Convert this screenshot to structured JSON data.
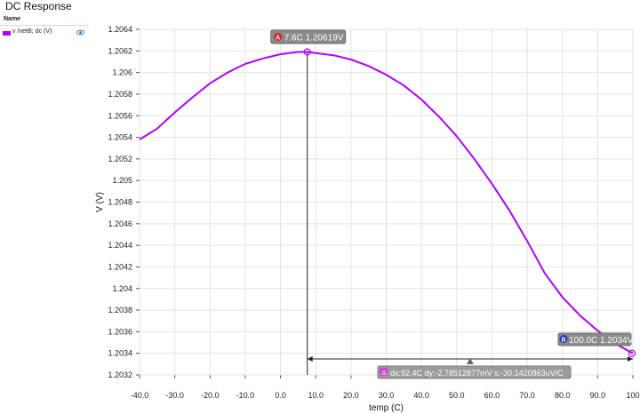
{
  "window": {
    "title": "DC Response"
  },
  "legend": {
    "header": "Name",
    "items": [
      {
        "label": "v /netB; dc (V)",
        "color": "#b200ff",
        "icon": "eye-icon"
      }
    ]
  },
  "chart_data": {
    "type": "line",
    "xlabel": "temp (C)",
    "ylabel": "V (V)",
    "xlim": [
      -40,
      100
    ],
    "ylim": [
      1.2032,
      1.2064
    ],
    "x_ticks": [
      -40,
      -30,
      -20,
      -10,
      0,
      10,
      20,
      30,
      40,
      50,
      60,
      70,
      80,
      90,
      100
    ],
    "x_tick_labels": [
      "-40.0",
      "-30.0",
      "-20.0",
      "-10.0",
      "0.0",
      "10.0",
      "20.0",
      "30.0",
      "40.0",
      "50.0",
      "60.0",
      "70.0",
      "80.0",
      "90.0",
      "100"
    ],
    "y_ticks": [
      1.2032,
      1.2034,
      1.2036,
      1.2038,
      1.204,
      1.2042,
      1.2044,
      1.2046,
      1.2048,
      1.205,
      1.2052,
      1.2054,
      1.2056,
      1.2058,
      1.206,
      1.2062,
      1.2064
    ],
    "y_tick_labels": [
      "1.2032",
      "1.2034",
      "1.2036",
      "1.2038",
      "1.204",
      "1.2042",
      "1.2044",
      "1.2046",
      "1.2048",
      "1.205",
      "1.2052",
      "1.2054",
      "1.2056",
      "1.2058",
      "1.206",
      "1.2062",
      "1.2064"
    ],
    "grid": true,
    "series": [
      {
        "name": "v /netB; dc (V)",
        "color": "#b200ff",
        "x": [
          -40,
          -35,
          -30,
          -25,
          -20,
          -15,
          -10,
          -5,
          0,
          5,
          7.6,
          10,
          15,
          20,
          25,
          30,
          35,
          40,
          45,
          50,
          55,
          60,
          65,
          70,
          75,
          80,
          85,
          90,
          95,
          100
        ],
        "y": [
          1.20538,
          1.20548,
          1.20563,
          1.20577,
          1.2059,
          1.206,
          1.20608,
          1.20613,
          1.20617,
          1.20619,
          1.20619,
          1.20618,
          1.20616,
          1.20612,
          1.20606,
          1.20598,
          1.20588,
          1.20575,
          1.20559,
          1.20541,
          1.2052,
          1.20497,
          1.20472,
          1.20444,
          1.20414,
          1.20392,
          1.20375,
          1.20361,
          1.20349,
          1.2034
        ]
      }
    ],
    "markers": [
      {
        "id": "A",
        "label": "7.6C  1.20619V",
        "x": 7.6,
        "y": 1.20619,
        "badge_color": "#e02020"
      },
      {
        "id": "B",
        "label": "100.0C  1.2034V",
        "x": 100,
        "y": 1.2034,
        "badge_color": "#2030c0"
      }
    ],
    "delta": {
      "label": "dx:92.4C  dy:-2.78512877mV  s:-30.1420863uV/C",
      "x1": 7.6,
      "x2": 100,
      "y": 1.2034
    }
  }
}
